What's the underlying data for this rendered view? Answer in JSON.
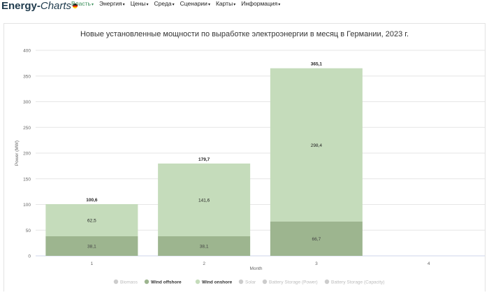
{
  "app": {
    "logo_main": "Energy-",
    "logo_sub": "Charts"
  },
  "nav": {
    "items": [
      {
        "label": "Власть",
        "active": true
      },
      {
        "label": "Энергия",
        "active": false
      },
      {
        "label": "Цены",
        "active": false
      },
      {
        "label": "Среда",
        "active": false
      },
      {
        "label": "Сценарии",
        "active": false
      },
      {
        "label": "Карты",
        "active": false
      },
      {
        "label": "Информация",
        "active": false
      }
    ]
  },
  "colors": {
    "wind_onshore": "#c5dcbb",
    "wind_offshore": "#9db58f",
    "active_nav": "#3a8f5a"
  },
  "chart_data": {
    "type": "bar",
    "title": "Новые установленные мощности по выработке электроэнергии в месяц в Германии, 2023 г.",
    "xlabel": "Month",
    "ylabel": "Power (MW)",
    "ylim": [
      0,
      400
    ],
    "yticks": [
      0,
      50,
      100,
      150,
      200,
      250,
      300,
      350,
      400
    ],
    "categories": [
      "1",
      "2",
      "3",
      "4"
    ],
    "stacked": true,
    "series": [
      {
        "name": "Wind offshore",
        "values": [
          38.1,
          38.1,
          66.7,
          null
        ],
        "labels": [
          "38,1",
          "38,1",
          "66,7",
          ""
        ]
      },
      {
        "name": "Wind onshore",
        "values": [
          62.5,
          141.6,
          298.4,
          null
        ],
        "labels": [
          "62,5",
          "141,6",
          "298,4",
          ""
        ]
      }
    ],
    "totals": [
      100.6,
      179.7,
      365.1,
      null
    ],
    "total_labels": [
      "100,6",
      "179,7",
      "365,1",
      ""
    ],
    "legend": {
      "placement": "bottom",
      "items": [
        {
          "name": "Biomass",
          "active": false
        },
        {
          "name": "Wind offshore",
          "active": true
        },
        {
          "name": "Wind onshore",
          "active": true
        },
        {
          "name": "Solar",
          "active": false
        },
        {
          "name": "Battery Storage (Power)",
          "active": false
        },
        {
          "name": "Battery Storage (Capacity)",
          "active": false
        }
      ]
    }
  }
}
